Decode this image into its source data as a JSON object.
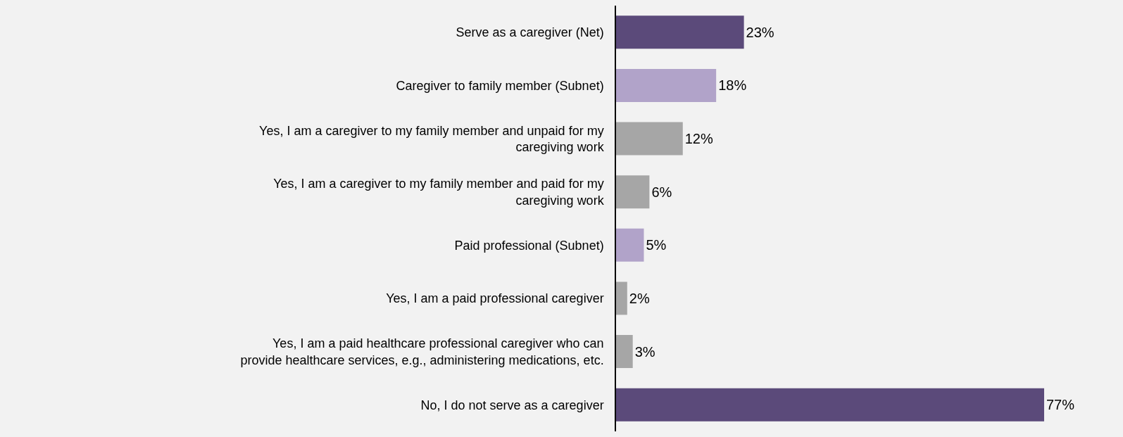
{
  "chart_data": {
    "type": "bar",
    "orientation": "horizontal",
    "tick_labels": "y",
    "grid": false,
    "legend": false,
    "categories": [
      "Serve as a caregiver (Net)",
      "Caregiver to family member (Subnet)",
      "Yes, I am a caregiver to my family member and unpaid for my\ncaregiving work",
      "Yes, I am a caregiver to my family member and paid for my\ncaregiving work",
      "Paid professional (Subnet)",
      "Yes, I am a paid professional caregiver",
      "Yes, I am a paid healthcare professional caregiver who can\nprovide healthcare services, e.g., administering medications, etc.",
      "No, I do not serve as a caregiver"
    ],
    "values": [
      23,
      18,
      12,
      6,
      5,
      2,
      3,
      77
    ],
    "colors": [
      "#5b4a7a",
      "#b1a3c9",
      "#a6a6a6",
      "#a6a6a6",
      "#b1a3c9",
      "#a6a6a6",
      "#a6a6a6",
      "#5b4a7a"
    ],
    "value_labels": [
      "23%",
      "18%",
      "12%",
      "6%",
      "5%",
      "2%",
      "3%",
      "77%"
    ]
  }
}
